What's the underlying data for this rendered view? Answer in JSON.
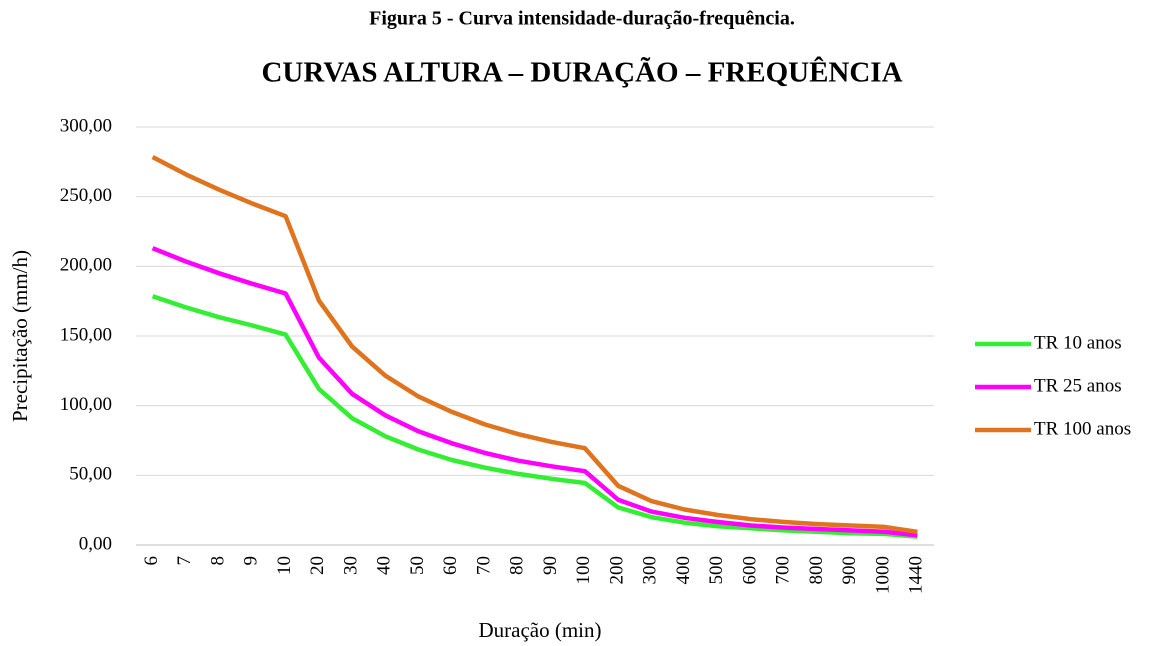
{
  "chart_data": {
    "type": "line",
    "figure_caption": "Figura 5 - Curva intensidade-duração-frequência.",
    "title": "CURVAS ALTURA – DURAÇÃO – FREQUÊNCIA",
    "x_label": "Duração (min)",
    "y_label": "Precipitação (mm/h)",
    "categories": [
      "6",
      "7",
      "8",
      "9",
      "10",
      "20",
      "30",
      "40",
      "50",
      "60",
      "70",
      "80",
      "90",
      "100",
      "200",
      "300",
      "400",
      "500",
      "600",
      "700",
      "800",
      "900",
      "1000",
      "1440"
    ],
    "series": [
      {
        "name": "TR 10 anos",
        "color": "#33ee33",
        "values": [
          178.5,
          170.5,
          163.5,
          157.5,
          151,
          112,
          91,
          78,
          68.5,
          61,
          55.5,
          51,
          47.5,
          44.5,
          27,
          20,
          16,
          13.5,
          12,
          10.5,
          9.5,
          8.5,
          8,
          6
        ]
      },
      {
        "name": "TR 25 anos",
        "color": "#ff00ff",
        "values": [
          213,
          203.5,
          195,
          187.5,
          180.5,
          134.5,
          108.5,
          93,
          81.5,
          73,
          66,
          60.5,
          56.5,
          53,
          32.5,
          24,
          19.5,
          16.5,
          14,
          12.5,
          11.5,
          10.5,
          9.5,
          7
        ]
      },
      {
        "name": "TR 100 anos",
        "color": "#e0731e",
        "values": [
          278.5,
          266,
          255,
          245,
          236,
          175.5,
          142.5,
          121.5,
          106.5,
          95.5,
          86.5,
          79.5,
          74,
          69.5,
          42.5,
          31.5,
          25.5,
          21.5,
          18.5,
          16.5,
          15,
          14,
          13,
          9.5
        ]
      }
    ],
    "ylim": [
      0,
      300
    ],
    "yticks": [
      {
        "value": 0,
        "label": "0,00"
      },
      {
        "value": 50,
        "label": "50,00"
      },
      {
        "value": 100,
        "label": "100,00"
      },
      {
        "value": 150,
        "label": "150,00"
      },
      {
        "value": 200,
        "label": "200,00"
      },
      {
        "value": 250,
        "label": "250,00"
      },
      {
        "value": 300,
        "label": "300,00"
      }
    ],
    "grid": true,
    "legend": "right"
  }
}
